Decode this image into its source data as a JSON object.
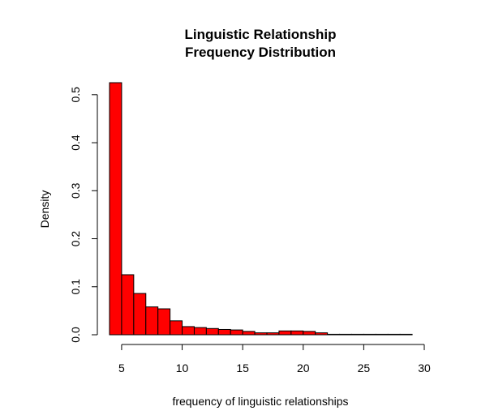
{
  "chart_data": {
    "type": "bar",
    "title_lines": [
      "Linguistic Relationship",
      "Frequency Distribution"
    ],
    "xlabel": "frequency of linguistic relationships",
    "ylabel": "Density",
    "xlim": [
      4,
      30
    ],
    "ylim": [
      0,
      0.525
    ],
    "x_ticks": [
      5,
      10,
      15,
      20,
      25,
      30
    ],
    "y_ticks": [
      0.0,
      0.1,
      0.2,
      0.3,
      0.4,
      0.5
    ],
    "x_tick_labels": [
      "5",
      "10",
      "15",
      "20",
      "25",
      "30"
    ],
    "y_tick_labels": [
      "0.0",
      "0.1",
      "0.2",
      "0.3",
      "0.4",
      "0.5"
    ],
    "bar_color": "#ff0000",
    "bar_edge_color": "#000000",
    "bins": [
      {
        "x0": 4,
        "x1": 5,
        "value": 0.525
      },
      {
        "x0": 5,
        "x1": 6,
        "value": 0.125
      },
      {
        "x0": 6,
        "x1": 7,
        "value": 0.086
      },
      {
        "x0": 7,
        "x1": 8,
        "value": 0.058
      },
      {
        "x0": 8,
        "x1": 9,
        "value": 0.054
      },
      {
        "x0": 9,
        "x1": 10,
        "value": 0.029
      },
      {
        "x0": 10,
        "x1": 11,
        "value": 0.017
      },
      {
        "x0": 11,
        "x1": 12,
        "value": 0.015
      },
      {
        "x0": 12,
        "x1": 13,
        "value": 0.013
      },
      {
        "x0": 13,
        "x1": 14,
        "value": 0.011
      },
      {
        "x0": 14,
        "x1": 15,
        "value": 0.01
      },
      {
        "x0": 15,
        "x1": 16,
        "value": 0.007
      },
      {
        "x0": 16,
        "x1": 17,
        "value": 0.004
      },
      {
        "x0": 17,
        "x1": 18,
        "value": 0.004
      },
      {
        "x0": 18,
        "x1": 19,
        "value": 0.008
      },
      {
        "x0": 19,
        "x1": 20,
        "value": 0.008
      },
      {
        "x0": 20,
        "x1": 21,
        "value": 0.007
      },
      {
        "x0": 21,
        "x1": 22,
        "value": 0.004
      },
      {
        "x0": 22,
        "x1": 23,
        "value": 0.001
      },
      {
        "x0": 23,
        "x1": 24,
        "value": 0.001
      },
      {
        "x0": 24,
        "x1": 25,
        "value": 0.001
      },
      {
        "x0": 25,
        "x1": 26,
        "value": 0.001
      },
      {
        "x0": 26,
        "x1": 27,
        "value": 0.001
      },
      {
        "x0": 27,
        "x1": 28,
        "value": 0.001
      },
      {
        "x0": 28,
        "x1": 29,
        "value": 0.001
      }
    ],
    "grid": false,
    "legend": "none"
  }
}
